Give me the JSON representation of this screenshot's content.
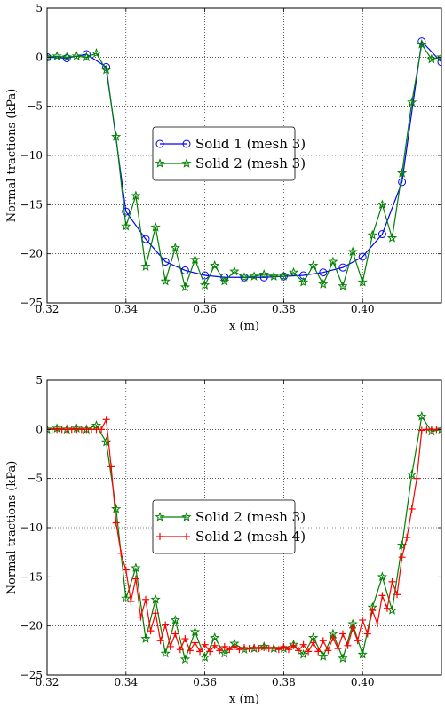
{
  "chart_data": [
    {
      "type": "line",
      "xlabel": "x (m)",
      "ylabel": "Normal tractions (kPa)",
      "xlim": [
        0.32,
        0.42
      ],
      "ylim": [
        -25,
        5
      ],
      "xticks": [
        0.32,
        0.34,
        0.36,
        0.38,
        0.4
      ],
      "xtick_labels": [
        "0.32",
        "0.34",
        "0.36",
        "0.38",
        "0.40"
      ],
      "yticks": [
        5,
        0,
        -5,
        -10,
        -15,
        -20,
        -25
      ],
      "ytick_labels": [
        "5",
        "0",
        "−5",
        "−10",
        "−15",
        "−20",
        "−25"
      ],
      "grid": true,
      "legend_position": "center",
      "series": [
        {
          "name": "Solid 1 (mesh 3)",
          "color": "#0000ff",
          "marker": "circle",
          "x": [
            0.32,
            0.325,
            0.33,
            0.335,
            0.34,
            0.345,
            0.35,
            0.355,
            0.36,
            0.365,
            0.37,
            0.375,
            0.38,
            0.385,
            0.39,
            0.395,
            0.4,
            0.405,
            0.41,
            0.415,
            0.42
          ],
          "y": [
            0.0,
            -0.1,
            0.3,
            -1.0,
            -15.7,
            -18.5,
            -20.8,
            -21.7,
            -22.2,
            -22.4,
            -22.4,
            -22.4,
            -22.3,
            -22.2,
            -21.9,
            -21.4,
            -20.3,
            -18.0,
            -12.7,
            1.6,
            -0.5
          ]
        },
        {
          "name": "Solid 2 (mesh 3)",
          "color": "#008000",
          "marker": "star",
          "x": [
            0.32,
            0.3225,
            0.325,
            0.3275,
            0.33,
            0.3325,
            0.335,
            0.3375,
            0.34,
            0.3425,
            0.345,
            0.3475,
            0.35,
            0.3525,
            0.355,
            0.3575,
            0.36,
            0.3625,
            0.365,
            0.3675,
            0.37,
            0.3725,
            0.375,
            0.3775,
            0.38,
            0.3825,
            0.385,
            0.3875,
            0.39,
            0.3925,
            0.395,
            0.3975,
            0.4,
            0.4025,
            0.405,
            0.4075,
            0.41,
            0.4125,
            0.415,
            0.4175,
            0.42
          ],
          "y": [
            0.0,
            0.1,
            0.0,
            0.1,
            0.0,
            0.4,
            -1.3,
            -8.1,
            -17.2,
            -14.1,
            -21.3,
            -17.3,
            -22.8,
            -19.4,
            -23.4,
            -20.6,
            -23.2,
            -21.2,
            -22.8,
            -21.8,
            -22.4,
            -22.3,
            -22.1,
            -22.3,
            -22.3,
            -21.9,
            -22.9,
            -21.2,
            -23.1,
            -20.8,
            -23.3,
            -19.8,
            -22.9,
            -18.1,
            -15.0,
            -18.4,
            -11.8,
            -4.6,
            1.3,
            -0.2,
            0.0
          ]
        }
      ]
    },
    {
      "type": "line",
      "xlabel": "x (m)",
      "ylabel": "Normal tractions (kPa)",
      "xlim": [
        0.32,
        0.42
      ],
      "ylim": [
        -25,
        5
      ],
      "xticks": [
        0.32,
        0.34,
        0.36,
        0.38,
        0.4
      ],
      "xtick_labels": [
        "0.32",
        "0.34",
        "0.36",
        "0.38",
        "0.40"
      ],
      "yticks": [
        5,
        0,
        -5,
        -10,
        -15,
        -20,
        -25
      ],
      "ytick_labels": [
        "5",
        "0",
        "−5",
        "−10",
        "−15",
        "−20",
        "−25"
      ],
      "grid": true,
      "legend_position": "center",
      "series": [
        {
          "name": "Solid 2 (mesh 3)",
          "color": "#008000",
          "marker": "star",
          "x": [
            0.32,
            0.3225,
            0.325,
            0.3275,
            0.33,
            0.3325,
            0.335,
            0.3375,
            0.34,
            0.3425,
            0.345,
            0.3475,
            0.35,
            0.3525,
            0.355,
            0.3575,
            0.36,
            0.3625,
            0.365,
            0.3675,
            0.37,
            0.3725,
            0.375,
            0.3775,
            0.38,
            0.3825,
            0.385,
            0.3875,
            0.39,
            0.3925,
            0.395,
            0.3975,
            0.4,
            0.4025,
            0.405,
            0.4075,
            0.41,
            0.4125,
            0.415,
            0.4175,
            0.42
          ],
          "y": [
            0.0,
            0.1,
            0.0,
            0.1,
            0.0,
            0.4,
            -1.3,
            -8.1,
            -17.2,
            -14.1,
            -21.3,
            -17.3,
            -22.8,
            -19.4,
            -23.4,
            -20.6,
            -23.2,
            -21.2,
            -22.8,
            -21.8,
            -22.4,
            -22.3,
            -22.1,
            -22.3,
            -22.3,
            -21.9,
            -22.9,
            -21.2,
            -23.1,
            -20.8,
            -23.3,
            -19.8,
            -22.9,
            -18.1,
            -15.0,
            -18.4,
            -11.8,
            -4.6,
            1.3,
            -0.2,
            0.0
          ]
        },
        {
          "name": "Solid 2 (mesh 4)",
          "color": "#ff0000",
          "marker": "plus",
          "x": [
            0.32,
            0.32125,
            0.3225,
            0.32375,
            0.325,
            0.32625,
            0.3275,
            0.32875,
            0.33,
            0.33125,
            0.3325,
            0.33375,
            0.335,
            0.33625,
            0.3375,
            0.33875,
            0.34,
            0.34125,
            0.3425,
            0.34375,
            0.345,
            0.34625,
            0.3475,
            0.34875,
            0.35,
            0.35125,
            0.3525,
            0.35375,
            0.355,
            0.35625,
            0.3575,
            0.35875,
            0.36,
            0.36125,
            0.3625,
            0.36375,
            0.365,
            0.36625,
            0.3675,
            0.36875,
            0.37,
            0.37125,
            0.3725,
            0.37375,
            0.375,
            0.37625,
            0.3775,
            0.37875,
            0.38,
            0.38125,
            0.3825,
            0.38375,
            0.385,
            0.38625,
            0.3875,
            0.38875,
            0.39,
            0.39125,
            0.3925,
            0.39375,
            0.395,
            0.39625,
            0.3975,
            0.39875,
            0.4,
            0.40125,
            0.4025,
            0.40375,
            0.405,
            0.40625,
            0.4075,
            0.40875,
            0.41,
            0.41125,
            0.4125,
            0.41375,
            0.415,
            0.41625,
            0.4175,
            0.41875,
            0.42
          ],
          "y": [
            0.0,
            0.0,
            0.0,
            0.0,
            0.0,
            0.0,
            0.0,
            0.0,
            0.0,
            0.0,
            0.0,
            0.0,
            1.0,
            -3.8,
            -9.5,
            -12.6,
            -14.3,
            -17.5,
            -15.2,
            -19.1,
            -17.3,
            -20.5,
            -18.7,
            -21.5,
            -19.9,
            -22.1,
            -20.8,
            -22.4,
            -21.3,
            -22.5,
            -21.7,
            -22.6,
            -21.9,
            -22.6,
            -22.0,
            -22.5,
            -22.1,
            -22.4,
            -22.1,
            -22.4,
            -22.2,
            -22.3,
            -22.2,
            -22.3,
            -22.2,
            -22.3,
            -22.2,
            -22.4,
            -22.1,
            -22.4,
            -22.0,
            -22.5,
            -21.9,
            -22.6,
            -21.7,
            -22.6,
            -21.5,
            -22.5,
            -21.2,
            -22.3,
            -20.8,
            -22.0,
            -20.2,
            -21.5,
            -19.4,
            -20.8,
            -18.4,
            -19.8,
            -16.9,
            -18.2,
            -15.5,
            -16.8,
            -13.0,
            -11.0,
            -8.1,
            -5.0,
            -0.1,
            0.0,
            0.0,
            0.0,
            0.0
          ]
        }
      ]
    }
  ]
}
